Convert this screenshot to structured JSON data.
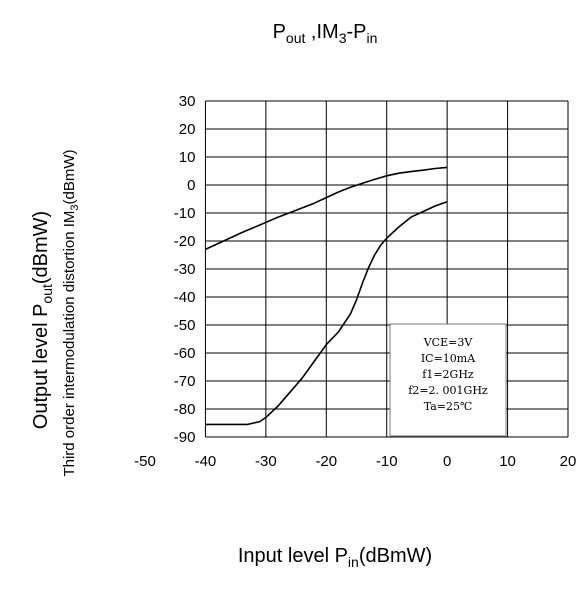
{
  "chart_data": {
    "type": "line",
    "title": {
      "main": "P",
      "sub1": "out",
      "mid": " ,IM",
      "sub2": "3",
      "dash": "-P",
      "sub3": "in"
    },
    "xlabel": {
      "main": "Input level P",
      "sub": "in",
      "tail": "(dBmW)"
    },
    "ylabel_left": {
      "main": "Output level P",
      "sub": "out",
      "tail": "(dBmW)"
    },
    "ylabel_right": {
      "main": "Third order intermodulation distortion IM",
      "sub": "3",
      "tail": "(dBmW)"
    },
    "xlim": [
      -50,
      20
    ],
    "ylim": [
      -90,
      30
    ],
    "x_ticks": [
      -50,
      -40,
      -30,
      -20,
      -10,
      0,
      10,
      20
    ],
    "y_ticks": [
      30,
      20,
      10,
      0,
      -10,
      -20,
      -30,
      -40,
      -50,
      -60,
      -70,
      -80,
      -90
    ],
    "x_tick_labels": [
      "-50",
      "-40",
      "-30",
      "-20",
      "-10",
      "0",
      "10",
      "20"
    ],
    "y_tick_labels": [
      "30",
      "20",
      "10",
      "0",
      "-10",
      "-20",
      "-30",
      "-40",
      "-50",
      "-60",
      "-70",
      "-80",
      "-90"
    ],
    "grid": true,
    "series": [
      {
        "x": [
          -40,
          -37,
          -34,
          -31,
          -28,
          -25,
          -22,
          -20,
          -18,
          -16,
          -14,
          -12,
          -10,
          -8,
          -6,
          -4,
          -2,
          0
        ],
        "values": [
          -23,
          -20,
          -17,
          -14.3,
          -11.5,
          -9,
          -6.5,
          -4.5,
          -2.5,
          -0.8,
          0.6,
          2,
          3.3,
          4.2,
          4.8,
          5.3,
          5.9,
          6.3
        ]
      },
      {
        "x": [
          -40,
          -36,
          -33,
          -31,
          -30,
          -28,
          -26,
          -24,
          -22,
          -20,
          -18,
          -16,
          -15,
          -14,
          -13,
          -12,
          -11,
          -10,
          -8,
          -6,
          -4,
          -2,
          0
        ],
        "values": [
          -85.5,
          -85.5,
          -85.5,
          -84.5,
          -83,
          -79,
          -74,
          -69,
          -63,
          -57,
          -52.5,
          -46,
          -41,
          -35,
          -29.5,
          -25,
          -21.5,
          -19,
          -15,
          -11.5,
          -9.5,
          -7.5,
          -6
        ]
      }
    ],
    "legend_lines": [
      "VCE=3V",
      "IC=10mA",
      "f1=2GHz",
      "f2=2. 001GHz",
      "Ta=25℃"
    ],
    "legend_placement": "bottom-right"
  }
}
